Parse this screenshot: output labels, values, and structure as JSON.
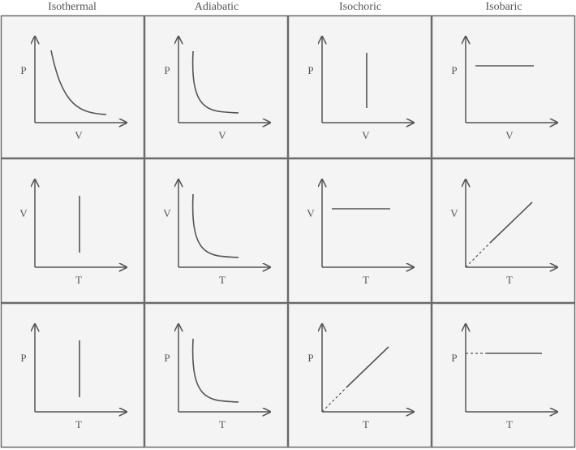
{
  "headers": [
    "Isothermal",
    "Adiabatic",
    "Isochoric",
    "Isobaric"
  ],
  "rows": [
    {
      "cells": [
        {
          "yaxis": "P",
          "xaxis": "V",
          "curve": "hyperbola-isothermal"
        },
        {
          "yaxis": "P",
          "xaxis": "V",
          "curve": "hyperbola-adiabatic"
        },
        {
          "yaxis": "P",
          "xaxis": "V",
          "curve": "vertical"
        },
        {
          "yaxis": "P",
          "xaxis": "V",
          "curve": "horizontal"
        }
      ]
    },
    {
      "cells": [
        {
          "yaxis": "V",
          "xaxis": "T",
          "curve": "vertical"
        },
        {
          "yaxis": "V",
          "xaxis": "T",
          "curve": "hyperbola-adiabatic"
        },
        {
          "yaxis": "V",
          "xaxis": "T",
          "curve": "horizontal"
        },
        {
          "yaxis": "V",
          "xaxis": "T",
          "curve": "line-through-origin"
        }
      ]
    },
    {
      "cells": [
        {
          "yaxis": "P",
          "xaxis": "T",
          "curve": "vertical"
        },
        {
          "yaxis": "P",
          "xaxis": "T",
          "curve": "hyperbola-adiabatic"
        },
        {
          "yaxis": "P",
          "xaxis": "T",
          "curve": "line-through-origin"
        },
        {
          "yaxis": "P",
          "xaxis": "T",
          "curve": "horizontal-dashed-to-axis"
        }
      ]
    }
  ],
  "colors": {
    "cell_bg": "#f4f4f4",
    "border": "#6b6b6b",
    "curve": "#555555"
  }
}
